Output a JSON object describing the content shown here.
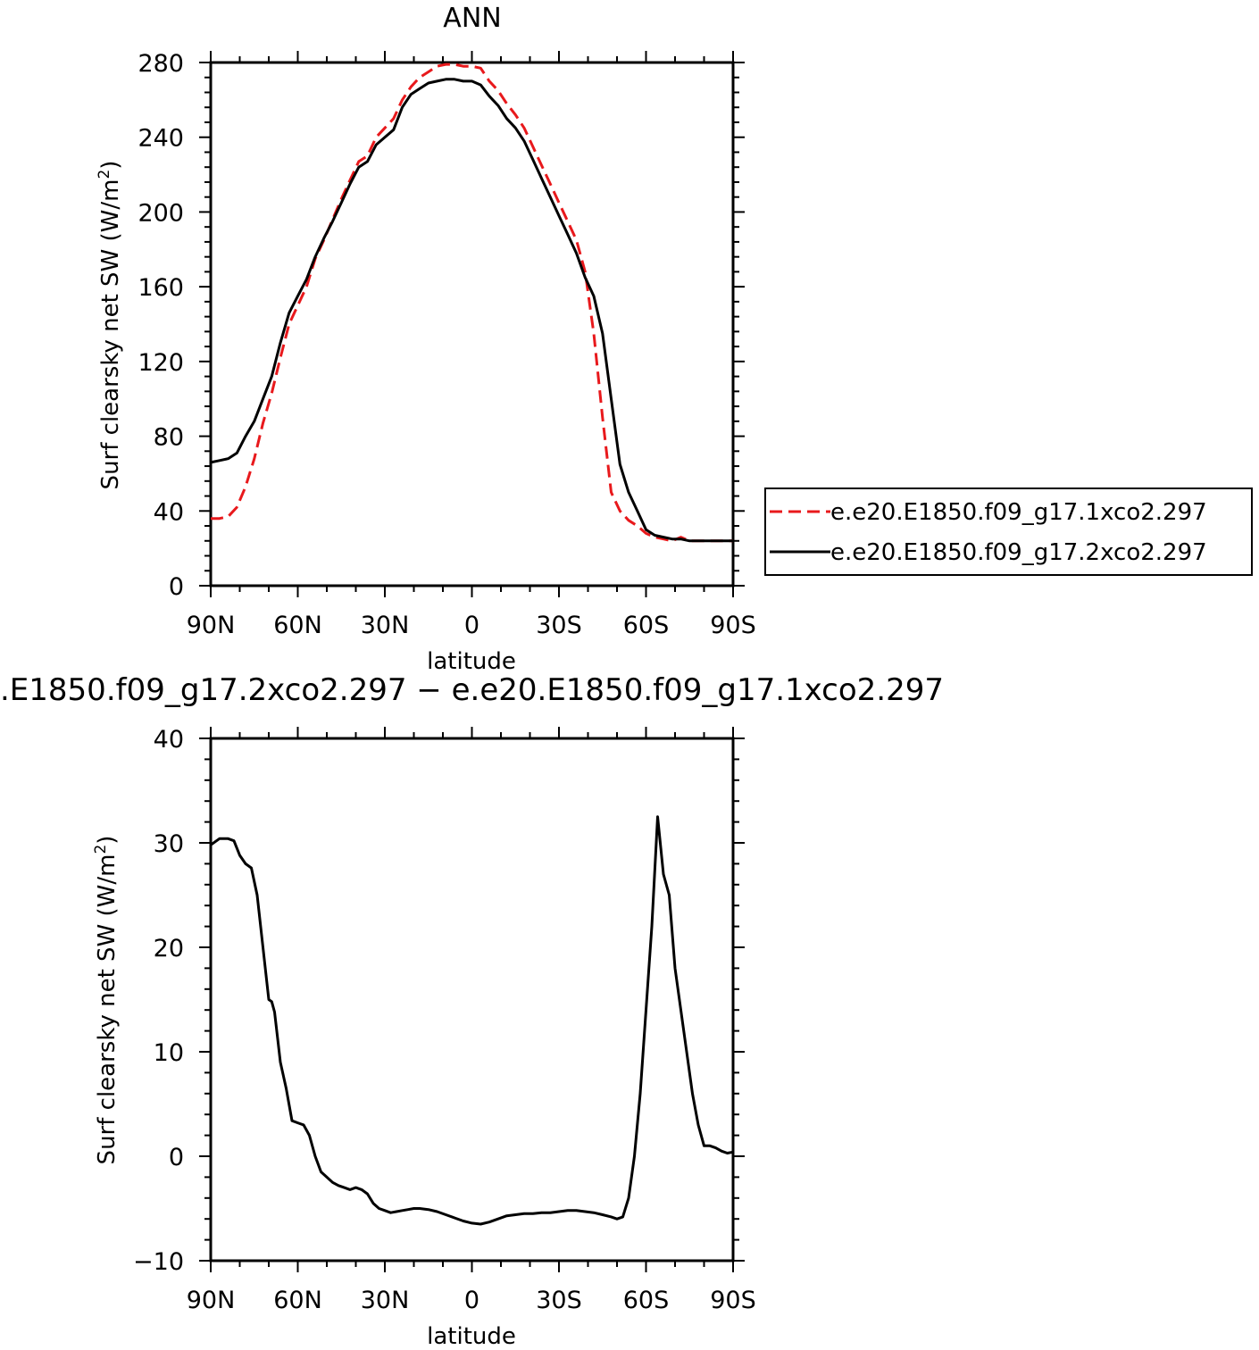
{
  "chart_data": [
    {
      "type": "line",
      "title": "ANN",
      "xlabel": "latitude",
      "ylabel": "Surf clearsky net SW (W/m²)",
      "xlim": [
        90,
        -90
      ],
      "xticks": [
        90,
        60,
        30,
        0,
        -30,
        -60,
        -90
      ],
      "xtick_labels": [
        "90N",
        "60N",
        "30N",
        "0",
        "30S",
        "60S",
        "90S"
      ],
      "ylim": [
        0,
        280
      ],
      "yticks": [
        0,
        40,
        80,
        120,
        160,
        200,
        240,
        280
      ],
      "ytick_labels": [
        "0",
        "40",
        "80",
        "120",
        "160",
        "200",
        "240",
        "280"
      ],
      "legend_position": "right",
      "series": [
        {
          "name": "e.e20.E1850.f09_g17.1xco2.297",
          "color": "#e8191c",
          "dash": "dashed",
          "x": [
            90,
            87,
            84,
            81,
            78,
            75,
            72,
            69,
            66,
            63,
            60,
            57,
            54,
            51,
            48,
            45,
            42,
            39,
            36,
            33,
            30,
            27,
            24,
            21,
            18,
            15,
            12,
            9,
            6,
            3,
            0,
            -3,
            -6,
            -9,
            -12,
            -15,
            -18,
            -21,
            -24,
            -27,
            -30,
            -33,
            -36,
            -39,
            -42,
            -45,
            -48,
            -51,
            -54,
            -57,
            -60,
            -63,
            -66,
            -69,
            -72,
            -75,
            -78,
            -81,
            -84,
            -87,
            -90
          ],
          "y": [
            36,
            36,
            37,
            42,
            53,
            68,
            87,
            103,
            122,
            140,
            150,
            160,
            175,
            185,
            196,
            207,
            217,
            227,
            230,
            240,
            245,
            250,
            260,
            267,
            272,
            275,
            278,
            279,
            279,
            278,
            278,
            277,
            270,
            265,
            258,
            252,
            245,
            235,
            225,
            215,
            205,
            195,
            185,
            168,
            135,
            90,
            50,
            40,
            35,
            32,
            28,
            26,
            25,
            24,
            26,
            24,
            24,
            24,
            24,
            24,
            24
          ]
        },
        {
          "name": "e.e20.E1850.f09_g17.2xco2.297",
          "color": "#000000",
          "dash": "solid",
          "x": [
            90,
            87,
            84,
            81,
            78,
            75,
            72,
            69,
            66,
            63,
            60,
            57,
            54,
            51,
            48,
            45,
            42,
            39,
            36,
            33,
            30,
            27,
            24,
            21,
            18,
            15,
            12,
            9,
            6,
            3,
            0,
            -3,
            -6,
            -9,
            -12,
            -15,
            -18,
            -21,
            -24,
            -27,
            -30,
            -33,
            -36,
            -39,
            -42,
            -45,
            -48,
            -51,
            -54,
            -57,
            -60,
            -63,
            -66,
            -69,
            -72,
            -75,
            -78,
            -81,
            -84,
            -87,
            -90
          ],
          "y": [
            66,
            67,
            68,
            71,
            80,
            88,
            100,
            112,
            130,
            146,
            155,
            164,
            176,
            186,
            195,
            205,
            215,
            224,
            227,
            236,
            240,
            244,
            256,
            263,
            266,
            269,
            270,
            271,
            271,
            270,
            270,
            268,
            262,
            257,
            250,
            245,
            238,
            228,
            218,
            208,
            198,
            188,
            178,
            165,
            155,
            135,
            100,
            65,
            50,
            40,
            30,
            27,
            26,
            25,
            25,
            24,
            24,
            24,
            24,
            24,
            24
          ]
        }
      ]
    },
    {
      "type": "line",
      "title": ".E1850.f09_g17.2xco2.297 − e.e20.E1850.f09_g17.1xco2.297",
      "xlabel": "latitude",
      "ylabel": "Surf clearsky net SW (W/m²)",
      "xlim": [
        90,
        -90
      ],
      "xticks": [
        90,
        60,
        30,
        0,
        -30,
        -60,
        -90
      ],
      "xtick_labels": [
        "90N",
        "60N",
        "30N",
        "0",
        "30S",
        "60S",
        "90S"
      ],
      "ylim": [
        -10,
        40
      ],
      "yticks": [
        -10,
        0,
        10,
        20,
        30,
        40
      ],
      "ytick_labels": [
        "−10",
        "0",
        "10",
        "20",
        "30",
        "40"
      ],
      "series": [
        {
          "color": "#000000",
          "dash": "solid",
          "x": [
            90,
            87,
            84,
            82,
            80,
            78,
            76,
            74,
            72,
            70,
            69,
            68,
            66,
            64,
            62,
            60,
            58,
            56,
            54,
            52,
            50,
            48,
            46,
            44,
            42,
            40,
            38,
            36,
            34,
            32,
            30,
            28,
            26,
            24,
            22,
            20,
            18,
            15,
            12,
            9,
            6,
            3,
            0,
            -3,
            -6,
            -9,
            -12,
            -15,
            -18,
            -21,
            -24,
            -27,
            -30,
            -33,
            -36,
            -39,
            -42,
            -45,
            -48,
            -50,
            -52,
            -54,
            -56,
            -58,
            -60,
            -62,
            -64,
            -66,
            -68,
            -70,
            -72,
            -74,
            -76,
            -78,
            -80,
            -82,
            -84,
            -86,
            -88,
            -90
          ],
          "y": [
            29.8,
            30.4,
            30.4,
            30.2,
            28.8,
            28.0,
            27.6,
            25.0,
            20.0,
            15.0,
            14.8,
            13.8,
            9.0,
            6.5,
            3.4,
            3.2,
            3.0,
            2.0,
            0.0,
            -1.5,
            -2.0,
            -2.5,
            -2.8,
            -3.0,
            -3.2,
            -3.0,
            -3.2,
            -3.6,
            -4.5,
            -5.0,
            -5.2,
            -5.4,
            -5.3,
            -5.2,
            -5.1,
            -5.0,
            -5.0,
            -5.1,
            -5.3,
            -5.6,
            -5.9,
            -6.2,
            -6.4,
            -6.5,
            -6.3,
            -6.0,
            -5.7,
            -5.6,
            -5.5,
            -5.5,
            -5.4,
            -5.4,
            -5.3,
            -5.2,
            -5.2,
            -5.3,
            -5.4,
            -5.6,
            -5.8,
            -6.0,
            -5.8,
            -4.0,
            0.0,
            6.0,
            14.0,
            22.0,
            32.5,
            27.0,
            25.0,
            18.0,
            14.0,
            10.0,
            6.0,
            3.0,
            1.0,
            1.0,
            0.8,
            0.5,
            0.3,
            0.4
          ]
        }
      ]
    }
  ]
}
